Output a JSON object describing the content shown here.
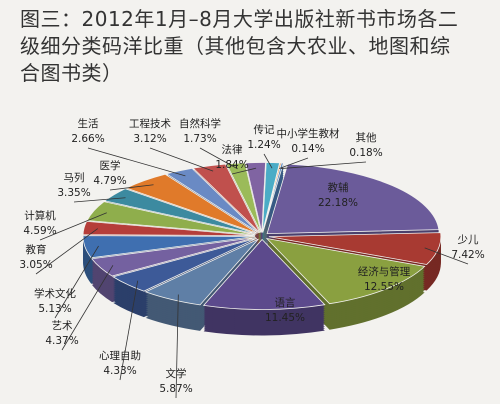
{
  "chart_data": {
    "type": "pie",
    "title": "图三：2012年1月–8月大学出版社新书市场各二级细分类码洋比重（其他包含大农业、地图和综合图书类）",
    "categories": [
      "教辅",
      "少儿",
      "经济与管理",
      "语言",
      "文学",
      "心理自助",
      "艺术",
      "学术文化",
      "教育",
      "计算机",
      "马列",
      "医学",
      "生活",
      "工程技术",
      "自然科学",
      "法律",
      "传记",
      "中小学生教材",
      "其他"
    ],
    "values": [
      22.18,
      7.42,
      12.55,
      11.45,
      5.87,
      4.33,
      4.37,
      5.13,
      3.05,
      4.59,
      3.35,
      4.79,
      2.66,
      3.12,
      1.73,
      1.84,
      1.24,
      0.14,
      0.18
    ],
    "value_labels": [
      "22.18%",
      "7.42%",
      "12.55%",
      "11.45%",
      "5.87%",
      "4.33%",
      "4.37%",
      "5.13%",
      "3.05%",
      "4.59%",
      "3.35%",
      "4.79%",
      "2.66%",
      "3.12%",
      "1.73%",
      "1.84%",
      "1.24%",
      "0.14%",
      "0.18%"
    ],
    "colors": [
      "#6b5b9a",
      "#a83a32",
      "#8aa040",
      "#5c4a8c",
      "#5f7fa6",
      "#3d5a98",
      "#7461a0",
      "#3f6fb0",
      "#b53e3a",
      "#8fae4c",
      "#3c8aa0",
      "#e07a2a",
      "#6a8ac4",
      "#c0504d",
      "#9bbb59",
      "#8064a2",
      "#4bacc6",
      "#f79646",
      "#4f81bd"
    ]
  }
}
